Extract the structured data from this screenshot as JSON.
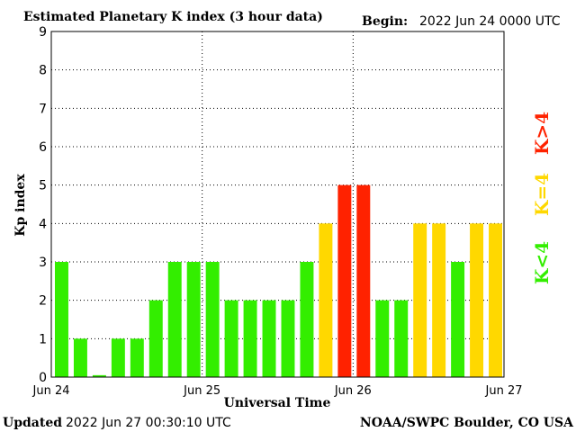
{
  "header": {
    "title": "Estimated Planetary K index (3 hour data)",
    "begin_label": "Begin:",
    "begin_value": "2022 Jun 24 0000 UTC"
  },
  "footer": {
    "updated_label": "Updated",
    "updated_value": "2022 Jun 27 00:30:10 UTC",
    "source": "NOAA/SWPC Boulder, CO USA"
  },
  "legend": {
    "high": "K>4",
    "mid": "K=4",
    "low": "K<4"
  },
  "colors": {
    "low": "#33ee00",
    "mid": "#ffd800",
    "high": "#ff2200",
    "axis": "#000000",
    "grid": "#000000"
  },
  "chart_data": {
    "type": "bar",
    "title": "Estimated Planetary K index (3 hour data)",
    "xlabel": "Universal Time",
    "ylabel": "Kp index",
    "ylim": [
      0,
      9
    ],
    "yticks": [
      "0",
      "1",
      "2",
      "3",
      "4",
      "5",
      "6",
      "7",
      "8",
      "9"
    ],
    "xticks": [
      "Jun 24",
      "Jun 25",
      "Jun 26",
      "Jun 27"
    ],
    "grid": true,
    "interval_hours": 3,
    "values": [
      3,
      1,
      0.05,
      1,
      1,
      2,
      3,
      3,
      3,
      2,
      2,
      2,
      2,
      3,
      4,
      5,
      5,
      2,
      2,
      4,
      4,
      3,
      4,
      4
    ]
  }
}
